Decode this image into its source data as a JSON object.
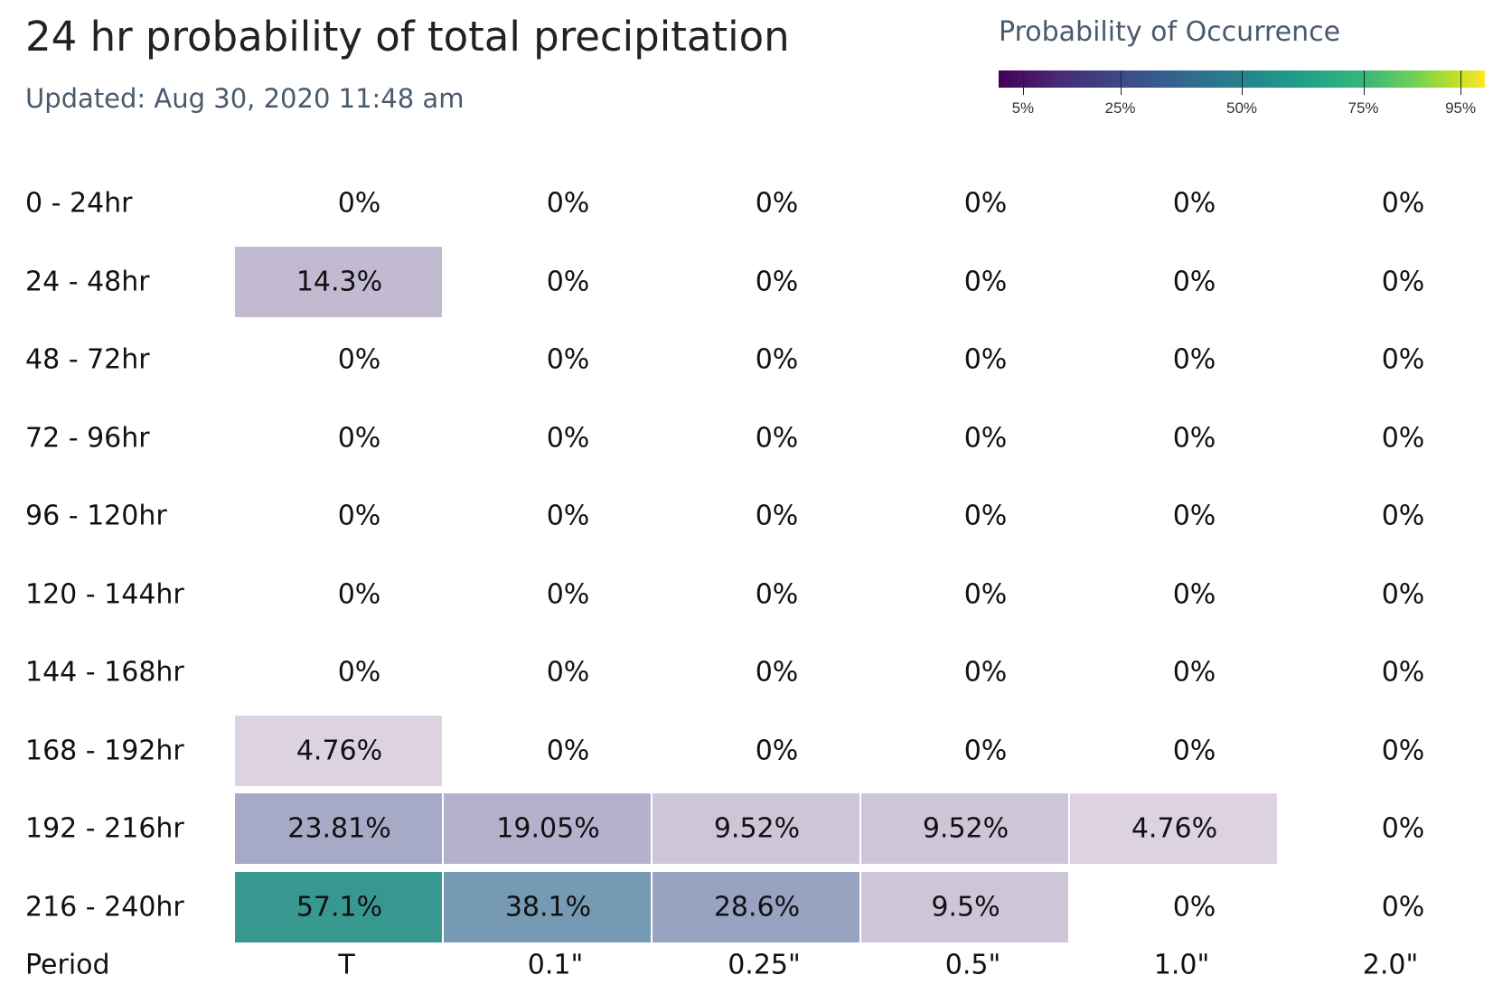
{
  "header": {
    "title": "24 hr probability of total precipitation",
    "updated": "Updated: Aug 30, 2020 11:48 am"
  },
  "legend": {
    "title": "Probability of Occurrence",
    "ticks": [
      {
        "value": 5,
        "label": "5%"
      },
      {
        "value": 25,
        "label": "25%"
      },
      {
        "value": 50,
        "label": "50%"
      },
      {
        "value": 75,
        "label": "75%"
      },
      {
        "value": 95,
        "label": "95%"
      }
    ],
    "colorscale": [
      "#440154",
      "#3e4989",
      "#26828e",
      "#35b779",
      "#fde725"
    ]
  },
  "chart_data": {
    "type": "heatmap",
    "title": "24 hr probability of total precipitation",
    "subtitle": "Updated: Aug 30, 2020 11:48 am",
    "xlabel": "",
    "ylabel": "",
    "period_label": "Period",
    "x_categories": [
      "T",
      "0.1\"",
      "0.25\"",
      "0.5\"",
      "1.0\"",
      "2.0\""
    ],
    "y_categories": [
      "0 - 24hr",
      "24 - 48hr",
      "48 - 72hr",
      "72 - 96hr",
      "96 - 120hr",
      "120 - 144hr",
      "144 - 168hr",
      "168 - 192hr",
      "192 - 216hr",
      "216 - 240hr"
    ],
    "values": [
      [
        0,
        0,
        0,
        0,
        0,
        0
      ],
      [
        14.3,
        0,
        0,
        0,
        0,
        0
      ],
      [
        0,
        0,
        0,
        0,
        0,
        0
      ],
      [
        0,
        0,
        0,
        0,
        0,
        0
      ],
      [
        0,
        0,
        0,
        0,
        0,
        0
      ],
      [
        0,
        0,
        0,
        0,
        0,
        0
      ],
      [
        0,
        0,
        0,
        0,
        0,
        0
      ],
      [
        4.76,
        0,
        0,
        0,
        0,
        0
      ],
      [
        23.81,
        19.05,
        9.52,
        9.52,
        4.76,
        0
      ],
      [
        57.1,
        38.1,
        28.6,
        9.5,
        0,
        0
      ]
    ],
    "labels": [
      [
        "0%",
        "0%",
        "0%",
        "0%",
        "0%",
        "0%"
      ],
      [
        "14.3%",
        "0%",
        "0%",
        "0%",
        "0%",
        "0%"
      ],
      [
        "0%",
        "0%",
        "0%",
        "0%",
        "0%",
        "0%"
      ],
      [
        "0%",
        "0%",
        "0%",
        "0%",
        "0%",
        "0%"
      ],
      [
        "0%",
        "0%",
        "0%",
        "0%",
        "0%",
        "0%"
      ],
      [
        "0%",
        "0%",
        "0%",
        "0%",
        "0%",
        "0%"
      ],
      [
        "0%",
        "0%",
        "0%",
        "0%",
        "0%",
        "0%"
      ],
      [
        "4.76%",
        "0%",
        "0%",
        "0%",
        "0%",
        "0%"
      ],
      [
        "23.81%",
        "19.05%",
        "9.52%",
        "9.52%",
        "4.76%",
        "0%"
      ],
      [
        "57.1%",
        "38.1%",
        "28.6%",
        "9.5%",
        "0%",
        "0%"
      ]
    ],
    "zlim": [
      0,
      100
    ]
  }
}
